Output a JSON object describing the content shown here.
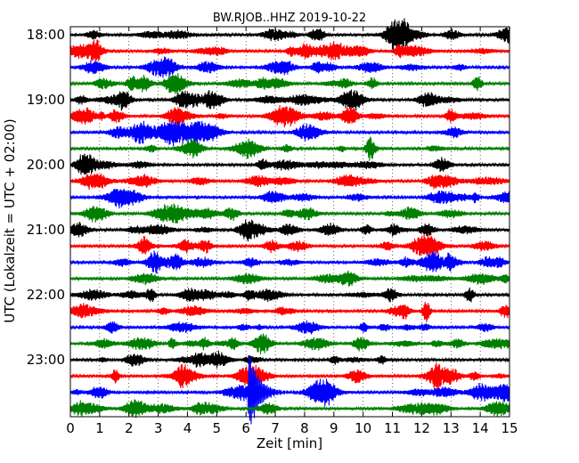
{
  "chart_data": {
    "type": "line",
    "title": "BW.RJOB..HHZ 2019-10-22",
    "xlabel": "Zeit  [min]",
    "ylabel": "UTC (Lokalzeit = UTC + 02:00)",
    "xlim": [
      0,
      15
    ],
    "x_ticks": [
      "0",
      "1",
      "2",
      "3",
      "4",
      "5",
      "6",
      "7",
      "8",
      "9",
      "10",
      "11",
      "12",
      "13",
      "14",
      "15"
    ],
    "y_ticks": [
      "18:00",
      "19:00",
      "20:00",
      "21:00",
      "22:00",
      "23:00"
    ],
    "grid": true,
    "trace_colors": [
      "#000000",
      "#ff0000",
      "#0000ff",
      "#008000"
    ],
    "traces": [
      {
        "start": "18:00"
      },
      {
        "start": "18:15"
      },
      {
        "start": "18:30"
      },
      {
        "start": "18:45"
      },
      {
        "start": "19:00"
      },
      {
        "start": "19:15"
      },
      {
        "start": "19:30"
      },
      {
        "start": "19:45"
      },
      {
        "start": "20:00"
      },
      {
        "start": "20:15"
      },
      {
        "start": "20:30"
      },
      {
        "start": "20:45"
      },
      {
        "start": "21:00"
      },
      {
        "start": "21:15"
      },
      {
        "start": "21:30"
      },
      {
        "start": "21:45"
      },
      {
        "start": "22:00"
      },
      {
        "start": "22:15"
      },
      {
        "start": "22:30"
      },
      {
        "start": "22:45"
      },
      {
        "start": "23:00"
      },
      {
        "start": "23:15"
      },
      {
        "start": "23:30"
      },
      {
        "start": "23:45"
      }
    ],
    "events": [
      {
        "trace_start": "23:30",
        "time_min": 6.1,
        "label": ""
      }
    ]
  }
}
